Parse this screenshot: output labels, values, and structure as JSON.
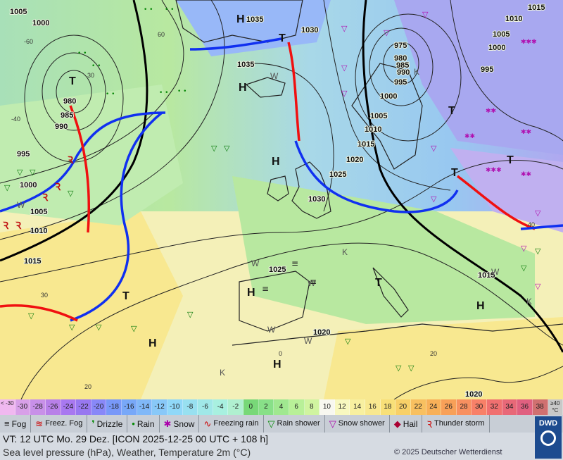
{
  "map": {
    "pressure_labels": [
      "1005",
      "1000",
      "1035",
      "1030",
      "1015",
      "1010",
      "1005",
      "1000",
      "995",
      "975",
      "980",
      "985",
      "990",
      "995",
      "1000",
      "980",
      "985",
      "990",
      "995",
      "1000",
      "1005",
      "1010",
      "1015",
      "1020",
      "1025",
      "1030",
      "1035",
      "1005",
      "1010",
      "1015",
      "1025",
      "1020",
      "1015",
      "1020"
    ],
    "high_low_labels": [
      "H",
      "H",
      "H",
      "H",
      "H",
      "H",
      "H",
      "T",
      "T",
      "T",
      "T",
      "T",
      "T",
      "T"
    ],
    "temp_labels": [
      "-60",
      "-40",
      "30",
      "60",
      "40",
      "0",
      "20",
      "30",
      "20"
    ],
    "weather_letters": [
      "W",
      "W",
      "W",
      "W",
      "W",
      "W",
      "W",
      "K",
      "K",
      "K",
      "K"
    ]
  },
  "scale": {
    "cells": [
      {
        "label": "< -30",
        "color": "#f0b8f0"
      },
      {
        "label": "-30",
        "color": "#d8a0e8"
      },
      {
        "label": "-28",
        "color": "#c890e8"
      },
      {
        "label": "-26",
        "color": "#b880e8"
      },
      {
        "label": "-24",
        "color": "#a878f0"
      },
      {
        "label": "-22",
        "color": "#9878f0"
      },
      {
        "label": "-20",
        "color": "#8888f8"
      },
      {
        "label": "-18",
        "color": "#7898f8"
      },
      {
        "label": "-16",
        "color": "#78a8f8"
      },
      {
        "label": "-14",
        "color": "#80b8f8"
      },
      {
        "label": "-12",
        "color": "#88c8f8"
      },
      {
        "label": "-10",
        "color": "#90d8f8"
      },
      {
        "label": "-8",
        "color": "#98e0f0"
      },
      {
        "label": "-6",
        "color": "#a0e8e8"
      },
      {
        "label": "-4",
        "color": "#a8f0e0"
      },
      {
        "label": "-2",
        "color": "#b0f0d0"
      },
      {
        "label": "0",
        "color": "#78d878"
      },
      {
        "label": "2",
        "color": "#88e088"
      },
      {
        "label": "4",
        "color": "#a0e890"
      },
      {
        "label": "6",
        "color": "#b8f098"
      },
      {
        "label": "8",
        "color": "#d0f4a0"
      },
      {
        "label": "10",
        "color": "#f8f8f0"
      },
      {
        "label": "12",
        "color": "#f8f8c0"
      },
      {
        "label": "14",
        "color": "#f8f0a0"
      },
      {
        "label": "16",
        "color": "#f8e890"
      },
      {
        "label": "18",
        "color": "#f8e078"
      },
      {
        "label": "20",
        "color": "#f8d068"
      },
      {
        "label": "22",
        "color": "#f8c060"
      },
      {
        "label": "24",
        "color": "#f8b058"
      },
      {
        "label": "26",
        "color": "#f8a058"
      },
      {
        "label": "28",
        "color": "#f89060"
      },
      {
        "label": "30",
        "color": "#f88068"
      },
      {
        "label": "32",
        "color": "#f07070"
      },
      {
        "label": "34",
        "color": "#e86878"
      },
      {
        "label": "36",
        "color": "#e06080"
      },
      {
        "label": "38",
        "color": "#d07070"
      },
      {
        "label": "≥40 °C",
        "color": "#c8c8c8"
      }
    ]
  },
  "legend": [
    {
      "icon": "fog-icon",
      "glyph": "≡",
      "label": "Fog",
      "color": "#222"
    },
    {
      "icon": "freezing-fog-icon",
      "glyph": "≋",
      "label": "Freez. Fog",
      "color": "#c00"
    },
    {
      "icon": "drizzle-icon",
      "glyph": "❜",
      "label": "Drizzle",
      "color": "#080"
    },
    {
      "icon": "rain-icon",
      "glyph": "•",
      "label": "Rain",
      "color": "#080"
    },
    {
      "icon": "snow-icon",
      "glyph": "✱",
      "label": "Snow",
      "color": "#a0a"
    },
    {
      "icon": "freezing-rain-icon",
      "glyph": "∿",
      "label": "Freezing rain",
      "color": "#c00"
    },
    {
      "icon": "rain-shower-icon",
      "glyph": "▽",
      "label": "Rain shower",
      "color": "#080"
    },
    {
      "icon": "snow-shower-icon",
      "glyph": "▽",
      "label": "Snow shower",
      "color": "#a0a"
    },
    {
      "icon": "hail-icon",
      "glyph": "◆",
      "label": "Hail",
      "color": "#a03"
    },
    {
      "icon": "thunderstorm-icon",
      "glyph": "Ꝛ",
      "label": "Thunder storm",
      "color": "#c00"
    }
  ],
  "footer": {
    "valid_time": "VT: 12 UTC Mo.   29 Dez. [ICON 2025-12-25  00 UTC + 108 h]",
    "subtitle": "Sea level pressure (hPa), Weather, Temperature 2m (°C)",
    "copyright": "© 2025 Deutscher Wetterdienst",
    "logo_text": "DWD"
  }
}
